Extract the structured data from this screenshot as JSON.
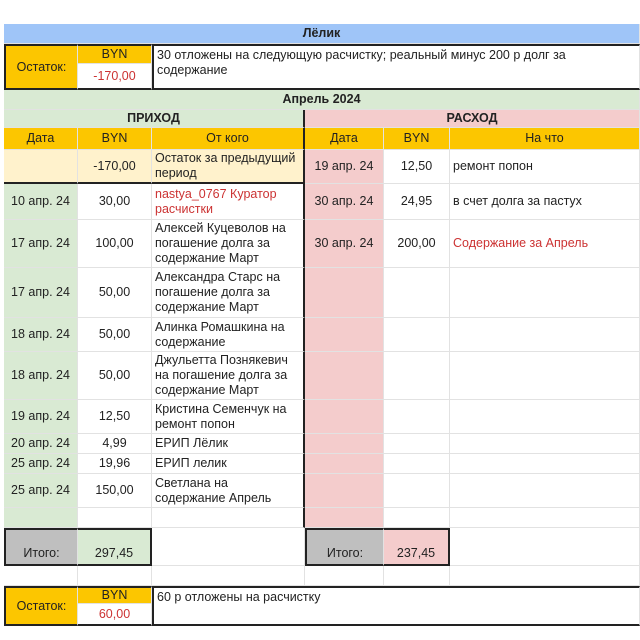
{
  "title": "Лёлик",
  "opening": {
    "label": "Остаток:",
    "currency": "BYN",
    "value": "-170,00",
    "note": "30 отложены на следующую расчистку; реальный минус 200 р долг за содержание"
  },
  "month": "Апрель 2024",
  "income": {
    "title": "ПРИХОД",
    "headers": [
      "Дата",
      "BYN",
      "От кого"
    ],
    "rows": [
      {
        "date": "",
        "amount": "-170,00",
        "from": "Остаток за предыдущий период"
      },
      {
        "date": "10 апр. 24",
        "amount": "30,00",
        "from": "nastya_0767 Куратор расчистки",
        "red": true
      },
      {
        "date": "17 апр. 24",
        "amount": "100,00",
        "from": "Алексей Куцеволов на погашение долга за содержание Март"
      },
      {
        "date": "17 апр. 24",
        "amount": "50,00",
        "from": "Александра Старс на погашение долга за содержание Март"
      },
      {
        "date": "18 апр. 24",
        "amount": "50,00",
        "from": "Алинка Ромашкина на содержание"
      },
      {
        "date": "18 апр. 24",
        "amount": "50,00",
        "from": "Джульетта Познякевич на погашение долга за содержание Март"
      },
      {
        "date": "19 апр. 24",
        "amount": "12,50",
        "from": "Кристина Семенчук на ремонт попон"
      },
      {
        "date": "20 апр. 24",
        "amount": "4,99",
        "from": "ЕРИП Лёлик"
      },
      {
        "date": "25 апр. 24",
        "amount": "19,96",
        "from": "ЕРИП лелик"
      },
      {
        "date": "25 апр. 24",
        "amount": "150,00",
        "from": "Светлана на содержание Апрель"
      }
    ],
    "total_label": "Итого:",
    "total": "297,45"
  },
  "expense": {
    "title": "РАСХОД",
    "headers": [
      "Дата",
      "BYN",
      "На что"
    ],
    "rows": [
      {
        "date": "19 апр. 24",
        "amount": "12,50",
        "for": "ремонт попон"
      },
      {
        "date": "30 апр. 24",
        "amount": "24,95",
        "for": "в счет долга за пастух"
      },
      {
        "date": "30 апр. 24",
        "amount": "200,00",
        "for": "Содержание за Апрель",
        "red": true
      }
    ],
    "total_label": "Итого:",
    "total": "237,45"
  },
  "closing": {
    "label": "Остаток:",
    "currency": "BYN",
    "value": "60,00",
    "note": "60 р отложены на расчистку"
  },
  "colors": {
    "title": "#9fc5f8",
    "header": "#fcc600",
    "income": "#d9ead3",
    "expense": "#f4cccc",
    "carry": "#fff2cc",
    "total": "#bfbfbf",
    "negative_text": "#cc3333"
  }
}
